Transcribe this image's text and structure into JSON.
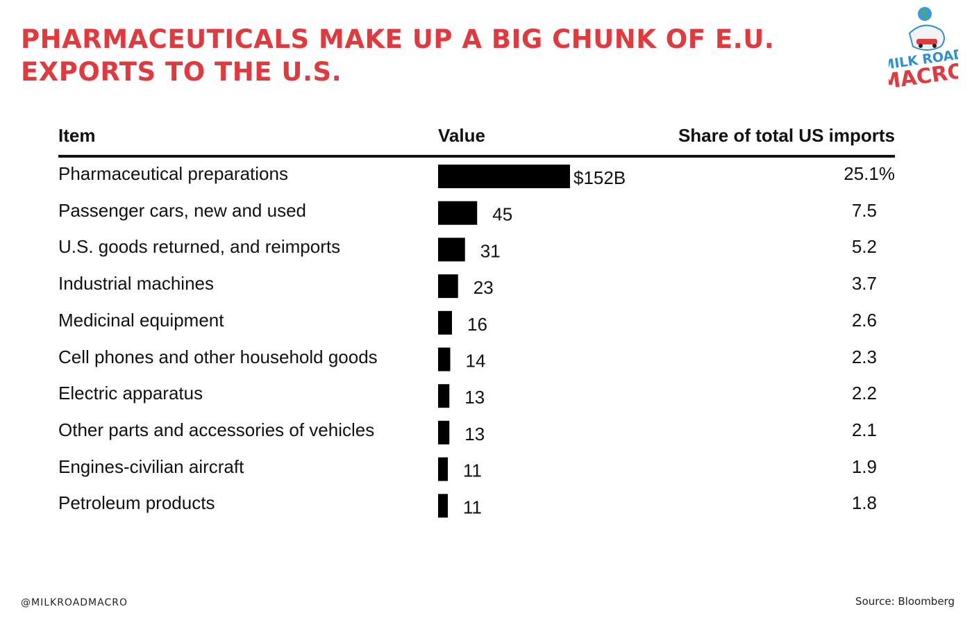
{
  "title": "PHARMACEUTICALS MAKE UP A BIG CHUNK OF E.U. EXPORTS TO THE U.S.",
  "brand": {
    "logo_line1": "MILK ROAD",
    "logo_line2": "MACRO"
  },
  "footer": {
    "handle": "@MILKROADMACRO",
    "source": "Source: Bloomberg"
  },
  "colors": {
    "title": "#e0393e",
    "bar": "#000000",
    "logo_blue": "#2f8fd4",
    "logo_red": "#e0393e"
  },
  "chart_data": {
    "type": "table",
    "columns": [
      "Item",
      "Value",
      "Share of total US imports"
    ],
    "value_unit": "$B",
    "rows": [
      {
        "item": "Pharmaceutical preparations",
        "value": 152,
        "value_label": "$152B",
        "share": "25.1%"
      },
      {
        "item": "Passenger cars, new and used",
        "value": 45,
        "value_label": "45",
        "share": "7.5"
      },
      {
        "item": "U.S. goods returned, and reimports",
        "value": 31,
        "value_label": "31",
        "share": "5.2"
      },
      {
        "item": "Industrial machines",
        "value": 23,
        "value_label": "23",
        "share": "3.7"
      },
      {
        "item": "Medicinal equipment",
        "value": 16,
        "value_label": "16",
        "share": "2.6"
      },
      {
        "item": "Cell phones and other household goods",
        "value": 14,
        "value_label": "14",
        "share": "2.3"
      },
      {
        "item": "Electric apparatus",
        "value": 13,
        "value_label": "13",
        "share": "2.2"
      },
      {
        "item": "Other parts and accessories of vehicles",
        "value": 13,
        "value_label": "13",
        "share": "2.1"
      },
      {
        "item": "Engines-civilian aircraft",
        "value": 11,
        "value_label": "11",
        "share": "1.9"
      },
      {
        "item": "Petroleum products",
        "value": 11,
        "value_label": "11",
        "share": "1.8"
      }
    ]
  }
}
